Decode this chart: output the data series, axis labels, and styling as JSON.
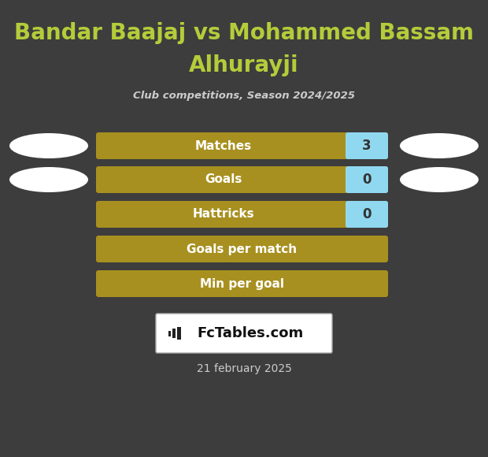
{
  "title_line1": "Bandar Baajaj vs Mohammed Bassam",
  "title_line2": "Alhurayji",
  "subtitle": "Club competitions, Season 2024/2025",
  "title_color": "#b5cc3a",
  "subtitle_color": "#cccccc",
  "background_color": "#3d3d3d",
  "rows": [
    {
      "label": "Matches",
      "value": "3",
      "has_value": true,
      "has_ellipse": true
    },
    {
      "label": "Goals",
      "value": "0",
      "has_value": true,
      "has_ellipse": true
    },
    {
      "label": "Hattricks",
      "value": "0",
      "has_value": true,
      "has_ellipse": false
    },
    {
      "label": "Goals per match",
      "value": "",
      "has_value": false,
      "has_ellipse": false
    },
    {
      "label": "Min per goal",
      "value": "",
      "has_value": false,
      "has_ellipse": false
    }
  ],
  "bar_bg_color": "#a89020",
  "bar_value_bg_color": "#90d8f0",
  "bar_label_color": "#ffffff",
  "bar_value_color": "#333333",
  "ellipse_color": "#ffffff",
  "date_text": "21 february 2025",
  "date_color": "#cccccc",
  "logo_text": "FcTables.com",
  "logo_bg": "#ffffff",
  "logo_border": "#aaaaaa"
}
